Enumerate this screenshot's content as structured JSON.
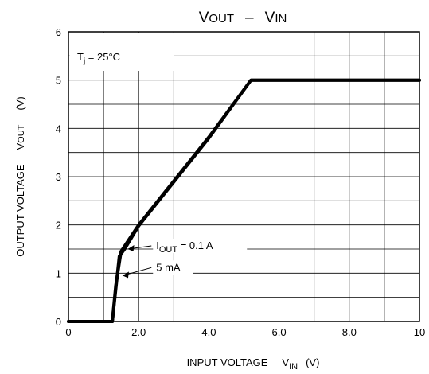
{
  "chart_data": {
    "type": "line",
    "title": {
      "main_a": "V",
      "sub_a": "OUT",
      "dash": "–",
      "main_b": "V",
      "sub_b": "IN"
    },
    "xlabel": {
      "text": "INPUT  VOLTAGE",
      "var_main": "V",
      "var_sub": "IN",
      "unit": "(V)"
    },
    "ylabel": {
      "text": "OUTPUT VOLTAGE",
      "var_main": "V",
      "var_sub": "OUT",
      "unit": "(V)"
    },
    "xlim": [
      0,
      10
    ],
    "ylim": [
      0,
      6
    ],
    "grid": true,
    "x_ticks": [
      {
        "value": 0,
        "label": "0"
      },
      {
        "value": 2,
        "label": "2.0"
      },
      {
        "value": 4,
        "label": "4.0"
      },
      {
        "value": 6,
        "label": "6.0"
      },
      {
        "value": 8,
        "label": "8.0"
      },
      {
        "value": 10,
        "label": "10"
      }
    ],
    "y_ticks": [
      {
        "value": 0,
        "label": "0"
      },
      {
        "value": 1,
        "label": "1"
      },
      {
        "value": 2,
        "label": "2"
      },
      {
        "value": 3,
        "label": "3"
      },
      {
        "value": 4,
        "label": "4"
      },
      {
        "value": 5,
        "label": "5"
      },
      {
        "value": 6,
        "label": "6"
      }
    ],
    "condition": {
      "main": "T",
      "sub": "j",
      "rest": " = 25°C"
    },
    "series": [
      {
        "name": "I_OUT = 0.1 A",
        "x": [
          0,
          1.25,
          1.45,
          1.6,
          2.0,
          4.0,
          5.2,
          10
        ],
        "y": [
          0,
          0,
          1.35,
          1.5,
          1.98,
          3.8,
          5.0,
          5.0
        ]
      },
      {
        "name": "5 mA",
        "x": [
          0,
          1.25,
          1.35,
          1.5,
          2.0,
          4.0,
          5.2,
          10
        ],
        "y": [
          0,
          0,
          0.75,
          1.45,
          2.0,
          3.82,
          5.0,
          5.0
        ]
      }
    ],
    "annotations": [
      {
        "main": "I",
        "sub": "OUT",
        "rest": " = 0.1 A",
        "x": 2.5,
        "y": 1.5
      },
      {
        "main": "",
        "sub": "",
        "rest": "5 mA",
        "x": 2.5,
        "y": 1.05
      }
    ]
  }
}
